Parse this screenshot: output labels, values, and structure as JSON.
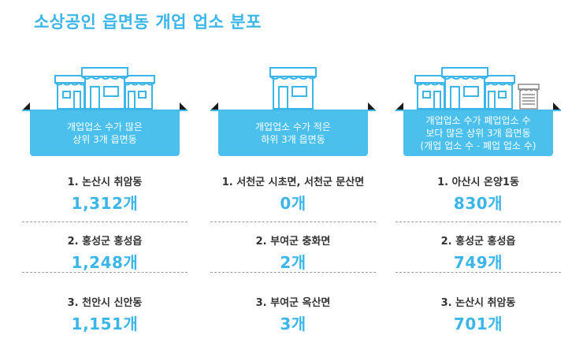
{
  "title": "소상공인 읍면동 개업 업소 분포",
  "colors": {
    "accent": "#3cb6e8",
    "banner": "#4bc0ec",
    "text": "#333333"
  },
  "columns": [
    {
      "banner_lines": [
        "개업업소 수가 많은",
        "상위 3개 읍면동"
      ],
      "items": [
        {
          "name": "1. 논산시 취암동",
          "value": "1,312개"
        },
        {
          "name": "2. 홍성군 홍성읍",
          "value": "1,248개"
        },
        {
          "name": "3. 천안시 신안동",
          "value": "1,151개"
        }
      ]
    },
    {
      "banner_lines": [
        "개업업소 수가 적은",
        "하위 3개 읍면동"
      ],
      "items": [
        {
          "name": "1. 서천군 시초면, 서천군 문산면",
          "value": "0개"
        },
        {
          "name": "2. 부여군 충화면",
          "value": "2개"
        },
        {
          "name": "3. 부여군 옥산면",
          "value": "3개"
        }
      ]
    },
    {
      "banner_lines": [
        "개업업소 수가 폐업업소 수",
        "보다 많은 상위 3개 읍면동",
        "(개업 업소 수 - 폐업 업소 수)"
      ],
      "items": [
        {
          "name": "1. 아산시 온양1동",
          "value": "830개"
        },
        {
          "name": "2. 홍성군 홍성읍",
          "value": "749개"
        },
        {
          "name": "3. 논산시 취암동",
          "value": "701개"
        }
      ]
    }
  ]
}
